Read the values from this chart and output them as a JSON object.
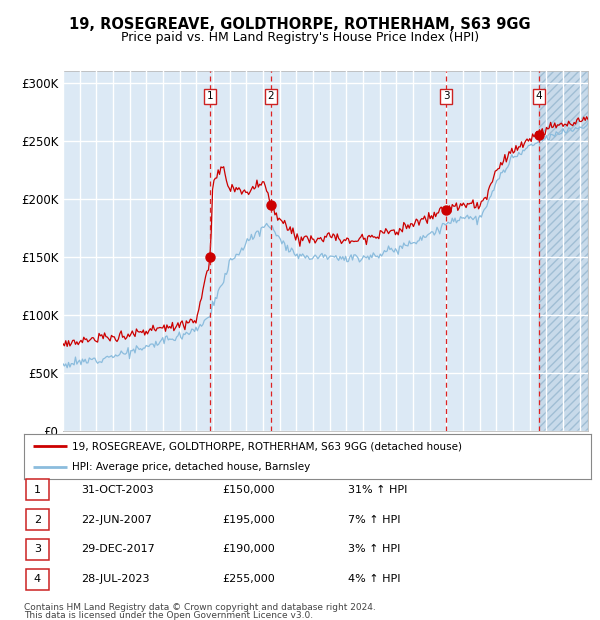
{
  "title1": "19, ROSEGREAVE, GOLDTHORPE, ROTHERHAM, S63 9GG",
  "title2": "Price paid vs. HM Land Registry's House Price Index (HPI)",
  "bg_color": "#dce9f5",
  "grid_color": "#ffffff",
  "red_color": "#cc0000",
  "blue_color": "#8bbcdd",
  "legend_label1": "19, ROSEGREAVE, GOLDTHORPE, ROTHERHAM, S63 9GG (detached house)",
  "legend_label2": "HPI: Average price, detached house, Barnsley",
  "sales": [
    {
      "num": 1,
      "date_dec": 2003.83,
      "price": 150000,
      "label": "31-OCT-2003",
      "pct": "31% ↑ HPI"
    },
    {
      "num": 2,
      "date_dec": 2007.47,
      "price": 195000,
      "label": "22-JUN-2007",
      "pct": "7% ↑ HPI"
    },
    {
      "num": 3,
      "date_dec": 2017.99,
      "price": 190000,
      "label": "29-DEC-2017",
      "pct": "3% ↑ HPI"
    },
    {
      "num": 4,
      "date_dec": 2023.56,
      "price": 255000,
      "label": "28-JUL-2023",
      "pct": "4% ↑ HPI"
    }
  ],
  "footer1": "Contains HM Land Registry data © Crown copyright and database right 2024.",
  "footer2": "This data is licensed under the Open Government Licence v3.0.",
  "xmin": 1995.0,
  "xmax": 2026.5,
  "ymin": 0,
  "ymax": 310000,
  "yticks": [
    0,
    50000,
    100000,
    150000,
    200000,
    250000,
    300000
  ],
  "ytick_labels": [
    "£0",
    "£50K",
    "£100K",
    "£150K",
    "£200K",
    "£250K",
    "£300K"
  ]
}
